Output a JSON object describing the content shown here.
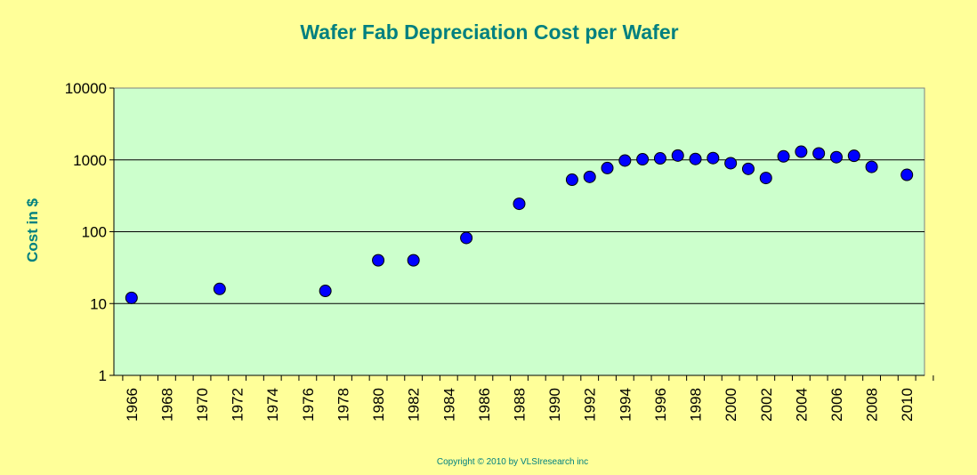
{
  "chart_data": {
    "type": "scatter",
    "title": "Wafer Fab Depreciation Cost per Wafer",
    "xlabel": "",
    "ylabel": "Cost in $",
    "y_scale": "log",
    "ylim": [
      1,
      10000
    ],
    "y_ticks": [
      "1",
      "10",
      "100",
      "1000",
      "10000"
    ],
    "xlim": [
      1965,
      2011
    ],
    "x_tick_labels": [
      "1966",
      "1968",
      "1970",
      "1972",
      "1974",
      "1976",
      "1978",
      "1980",
      "1982",
      "1984",
      "1986",
      "1988",
      "1990",
      "1992",
      "1994",
      "1996",
      "1998",
      "2000",
      "2002",
      "2004",
      "2006",
      "2008",
      "2010"
    ],
    "grid": "horizontal major lines",
    "legend": "none",
    "marker_color": "#0000ff",
    "plot_background": "#ccffcc",
    "series": [
      {
        "points": [
          {
            "x": 1966,
            "y": 12
          },
          {
            "x": 1971,
            "y": 16
          },
          {
            "x": 1977,
            "y": 15
          },
          {
            "x": 1980,
            "y": 40
          },
          {
            "x": 1982,
            "y": 40
          },
          {
            "x": 1985,
            "y": 82
          },
          {
            "x": 1988,
            "y": 245
          },
          {
            "x": 1991,
            "y": 530
          },
          {
            "x": 1992,
            "y": 580
          },
          {
            "x": 1993,
            "y": 770
          },
          {
            "x": 1994,
            "y": 980
          },
          {
            "x": 1995,
            "y": 1020
          },
          {
            "x": 1996,
            "y": 1050
          },
          {
            "x": 1997,
            "y": 1150
          },
          {
            "x": 1998,
            "y": 1030
          },
          {
            "x": 1999,
            "y": 1060
          },
          {
            "x": 2000,
            "y": 900
          },
          {
            "x": 2001,
            "y": 750
          },
          {
            "x": 2002,
            "y": 560
          },
          {
            "x": 2003,
            "y": 1120
          },
          {
            "x": 2004,
            "y": 1300
          },
          {
            "x": 2005,
            "y": 1230
          },
          {
            "x": 2006,
            "y": 1090
          },
          {
            "x": 2007,
            "y": 1140
          },
          {
            "x": 2008,
            "y": 800
          },
          {
            "x": 2010,
            "y": 620
          }
        ]
      }
    ]
  },
  "footer": {
    "copyright": "Copyright © 2010 by VLSIresearch inc"
  }
}
